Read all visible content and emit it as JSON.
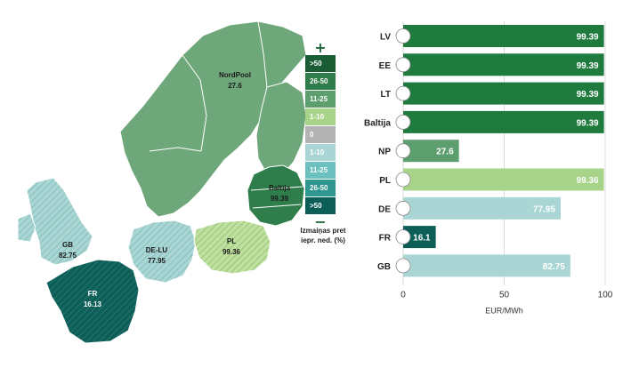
{
  "map": {
    "regions": [
      {
        "id": "nordpool",
        "name": "NordPool",
        "value": "27.6"
      },
      {
        "id": "baltija",
        "name": "Baltija",
        "value": "99.39"
      },
      {
        "id": "gb",
        "name": "GB",
        "value": "82.75"
      },
      {
        "id": "delu",
        "name": "DE-LU",
        "value": "77.95"
      },
      {
        "id": "pl",
        "name": "PL",
        "value": "99.36"
      },
      {
        "id": "fr",
        "name": "FR",
        "value": "16.13"
      }
    ]
  },
  "legend": {
    "plus": "+",
    "minus": "−",
    "items": [
      {
        "label": ">50",
        "color": "#1a5c34"
      },
      {
        "label": "26-50",
        "color": "#2e7d4a"
      },
      {
        "label": "11-25",
        "color": "#5d9e6e"
      },
      {
        "label": "1-10",
        "color": "#a8d48a"
      },
      {
        "label": "0",
        "color": "#b3b3b3"
      },
      {
        "label": "1-10",
        "color": "#a9d6d4"
      },
      {
        "label": "11-25",
        "color": "#6cc0bd"
      },
      {
        "label": "26-50",
        "color": "#2f9690"
      },
      {
        "label": ">50",
        "color": "#0e5e58"
      }
    ],
    "caption_line1": "Izmaiņas pret",
    "caption_line2": "iepr. ned. (%)"
  },
  "chart_data": {
    "type": "bar",
    "orientation": "horizontal",
    "categories": [
      "LV",
      "EE",
      "LT",
      "Baltija",
      "NP",
      "PL",
      "DE",
      "FR",
      "GB"
    ],
    "values": [
      99.39,
      99.39,
      99.39,
      99.39,
      27.6,
      99.36,
      77.95,
      16.13,
      82.75
    ],
    "value_labels": [
      "99.39",
      "99.39",
      "99.39",
      "99.39",
      "27.6",
      "99.36",
      "77.95",
      "16.1",
      "82.75"
    ],
    "colors": [
      "#1f7a3e",
      "#1f7a3e",
      "#1f7a3e",
      "#1f7a3e",
      "#5d9e6e",
      "#a8d48a",
      "#a9d6d4",
      "#0e5e58",
      "#a9d6d4"
    ],
    "xlim": [
      0,
      100
    ],
    "xticks": [
      "0",
      "50",
      "100"
    ],
    "xlabel": "EUR/MWh",
    "grid": true
  }
}
